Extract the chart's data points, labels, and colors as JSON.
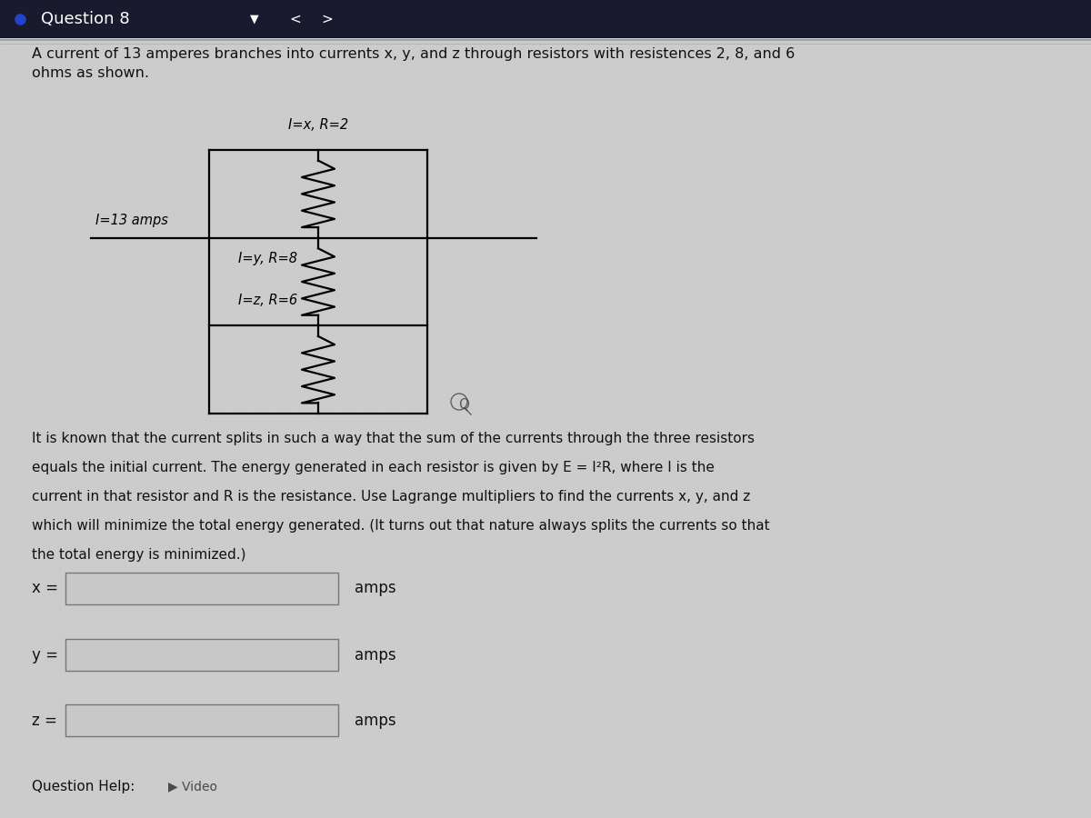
{
  "bg_color": "#d0d0d0",
  "header_bg": "#1a1a2e",
  "header_text": "Question 8",
  "body_bg": "#cccccc",
  "title_text": "A current of 13 amperes branches into currents x, y, and z through resistors with resistences 2, 8, and 6\nohms as shown.",
  "circuit_label_current": "I=13 amps",
  "resistor_labels": [
    "I=x, R=2",
    "I=y, R=8",
    "I=z, R=6"
  ],
  "paragraph_line1": "It is known that the current splits in such a way that the sum of the currents through the three resistors",
  "paragraph_line2": "equals the initial current. The energy generated in each resistor is given by E = I²R, where I is the",
  "paragraph_line3": "current in that resistor and R is the resistance. Use Lagrange multipliers to find the currents x, y, and z",
  "paragraph_line4": "which will minimize the total energy generated. (It turns out that nature always splits the currents so that",
  "paragraph_line5": "the total energy is minimized.)",
  "input_labels": [
    "x =",
    "y =",
    "z ="
  ],
  "input_units": [
    "amps",
    "amps",
    "amps"
  ],
  "text_color": "#111111",
  "line_color": "#000000"
}
